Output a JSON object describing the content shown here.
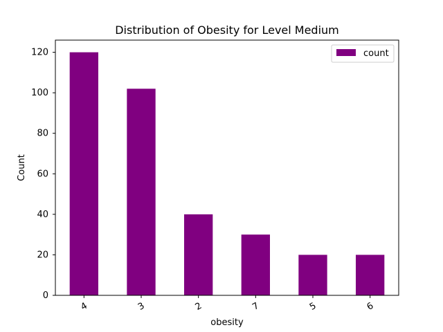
{
  "chart_data": {
    "type": "bar",
    "title": "Distribution of Obesity for Level Medium",
    "xlabel": "obesity",
    "ylabel": "Count",
    "categories": [
      "4",
      "3",
      "2",
      "7",
      "5",
      "6"
    ],
    "series": [
      {
        "name": "count",
        "values": [
          120,
          102,
          40,
          30,
          20,
          20
        ],
        "color": "#800080"
      }
    ],
    "ylim": [
      0,
      126
    ],
    "yticks": [
      0,
      20,
      40,
      60,
      80,
      100,
      120
    ],
    "x_tick_rotation": -30,
    "grid": false,
    "legend_position": "top-right"
  }
}
